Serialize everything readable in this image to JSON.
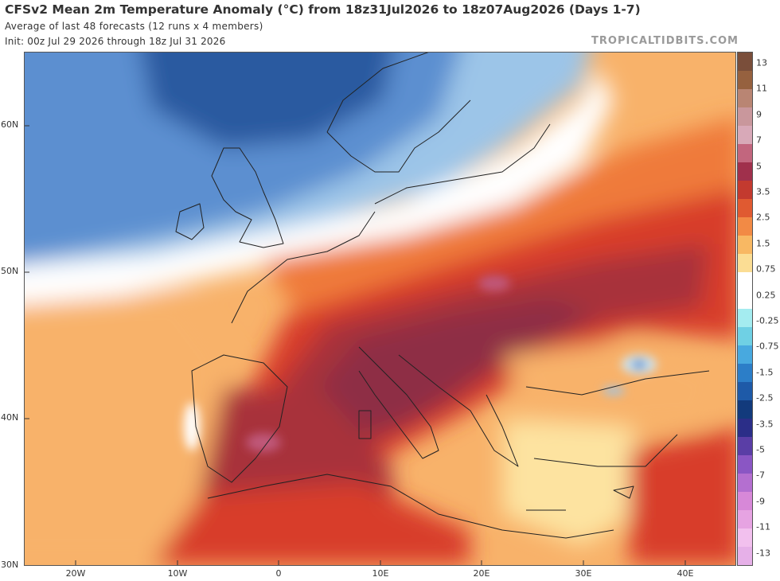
{
  "header": {
    "title": "CFSv2 Mean 2m Temperature Anomaly (°C) from 18z31Jul2026 to 18z07Aug2026 (Days 1-7)",
    "subtitle_line1": "Average of last 48 forecasts (12 runs x 4 members)",
    "subtitle_line2": "Init: 00z Jul 29 2026 through 18z Jul 31 2026",
    "brand": "TROPICALTIDBITS.COM"
  },
  "map": {
    "projection": "equirectangular",
    "lon_range": [
      -25,
      45
    ],
    "lat_range": [
      30,
      65
    ],
    "lat_labels": [
      "60N",
      "50N",
      "40N",
      "30N"
    ],
    "lon_labels": [
      "20W",
      "10W",
      "0",
      "10E",
      "20E",
      "30E",
      "40E"
    ],
    "colors": {
      "cold_deep": "#2c5aa0",
      "cold": "#5b8fd0",
      "cool": "#9cc5e8",
      "near_zero_cold": "#cfe8f5",
      "neutral": "#ffffff",
      "warm_light": "#fde3a0",
      "warm": "#f8b26a",
      "orange": "#ef7a3a",
      "red": "#d83c2c",
      "dark_red": "#a8303a",
      "maroon": "#8e2f45",
      "pink_hot": "#c0587a"
    }
  },
  "colorbar": {
    "labels": [
      "13",
      "11",
      "9",
      "7",
      "5",
      "3.5",
      "2.5",
      "1.5",
      "0.75",
      "0.25",
      "-0.25",
      "-0.75",
      "-1.5",
      "-2.5",
      "-3.5",
      "-5",
      "-7",
      "-9",
      "-11",
      "-13"
    ],
    "segments": [
      "#7a4e3a",
      "#96613f",
      "#b98573",
      "#c9979c",
      "#d8a9b8",
      "#c2667e",
      "#a0304c",
      "#c33a2f",
      "#e05a31",
      "#f28a45",
      "#f8b863",
      "#fbdd94",
      "#ffffff",
      "#ffffff",
      "#a4ecf0",
      "#6fd0e4",
      "#48a9df",
      "#2c7ec8",
      "#1e5aa8",
      "#123a7c",
      "#2b2e88",
      "#5a3ea6",
      "#8a56c4",
      "#b46fd0",
      "#d788d8",
      "#e6a3e2",
      "#f2c0ee",
      "#e6b0e8"
    ]
  }
}
